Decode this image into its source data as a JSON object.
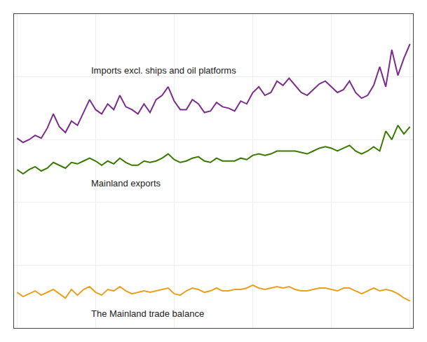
{
  "chart_data": {
    "type": "line",
    "series": [
      {
        "name": "Imports excl. ships and oil platforms",
        "color": "#7b2d8b",
        "values": [
          88,
          85,
          87,
          90,
          88,
          95,
          105,
          96,
          92,
          100,
          97,
          106,
          115,
          108,
          105,
          112,
          108,
          118,
          110,
          108,
          105,
          112,
          106,
          115,
          118,
          124,
          114,
          108,
          108,
          115,
          112,
          106,
          107,
          113,
          110,
          109,
          107,
          114,
          112,
          120,
          124,
          118,
          120,
          128,
          125,
          130,
          125,
          120,
          118,
          122,
          126,
          128,
          124,
          120,
          122,
          128,
          120,
          116,
          118,
          125,
          138,
          124,
          150,
          132,
          144,
          154
        ]
      },
      {
        "name": "Mainland exports",
        "color": "#3a7a00",
        "values": [
          66,
          63,
          66,
          68,
          65,
          67,
          71,
          69,
          67,
          71,
          70,
          72,
          74,
          72,
          69,
          72,
          70,
          74,
          71,
          69,
          69,
          72,
          71,
          72,
          74,
          77,
          73,
          71,
          72,
          74,
          75,
          72,
          71,
          74,
          72,
          72,
          72,
          74,
          73,
          76,
          77,
          76,
          77,
          79,
          79,
          79,
          79,
          78,
          77,
          79,
          81,
          82,
          81,
          79,
          81,
          83,
          79,
          77,
          79,
          82,
          79,
          93,
          87,
          97,
          91,
          96
        ]
      },
      {
        "name": "The Mainland trade balance",
        "color": "#e8a020",
        "values": [
          -20,
          -23,
          -21,
          -19,
          -22,
          -20,
          -18,
          -21,
          -24,
          -18,
          -22,
          -18,
          -16,
          -20,
          -22,
          -18,
          -19,
          -16,
          -19,
          -21,
          -20,
          -19,
          -20,
          -19,
          -18,
          -17,
          -21,
          -22,
          -19,
          -17,
          -18,
          -20,
          -19,
          -17,
          -19,
          -19,
          -18,
          -18,
          -17,
          -15,
          -17,
          -18,
          -17,
          -16,
          -17,
          -16,
          -18,
          -19,
          -19,
          -18,
          -17,
          -17,
          -18,
          -19,
          -17,
          -17,
          -19,
          -21,
          -19,
          -17,
          -19,
          -18,
          -19,
          -21,
          -24,
          -26
        ]
      }
    ],
    "xlim": [
      -0.5,
      65.5
    ],
    "xticks": [
      0,
      13,
      26,
      39,
      52,
      65
    ],
    "ylim": [
      -45,
      175
    ],
    "yticks": [
      -45,
      -1,
      43,
      87,
      131,
      175
    ],
    "grid": true,
    "tick_labels": false
  }
}
